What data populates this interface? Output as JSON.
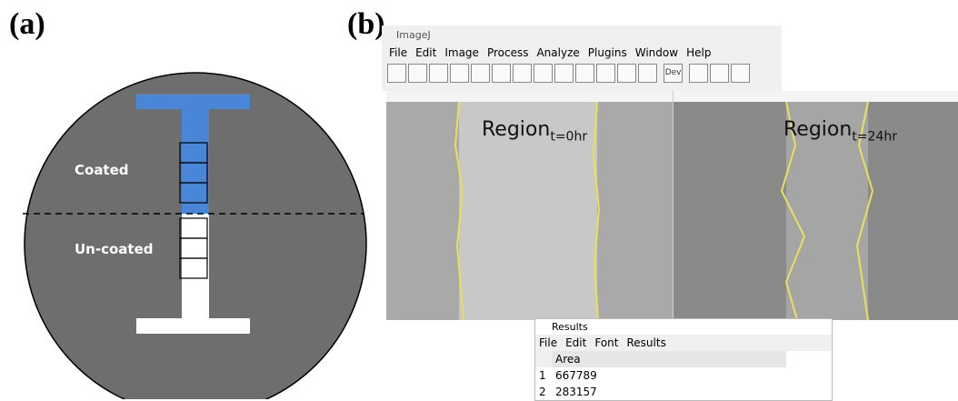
{
  "panel_a": {
    "label": "(a)",
    "coated": "Coated",
    "uncoated": "Un-coated"
  },
  "panel_b": {
    "label": "(b)",
    "imagej": {
      "title": "ImageJ",
      "menu": [
        "File",
        "Edit",
        "Image",
        "Process",
        "Analyze",
        "Plugins",
        "Window",
        "Help"
      ],
      "dev_tool": "Dev"
    },
    "images": [
      {
        "region": "Region",
        "subscript": "t=0hr"
      },
      {
        "region": "Region",
        "subscript": "t=24hr"
      }
    ],
    "results": {
      "title": "Results",
      "menu": [
        "File",
        "Edit",
        "Font",
        "Results"
      ],
      "header": "Area",
      "rows": [
        [
          "1",
          "667789"
        ],
        [
          "2",
          "283157"
        ]
      ]
    }
  }
}
